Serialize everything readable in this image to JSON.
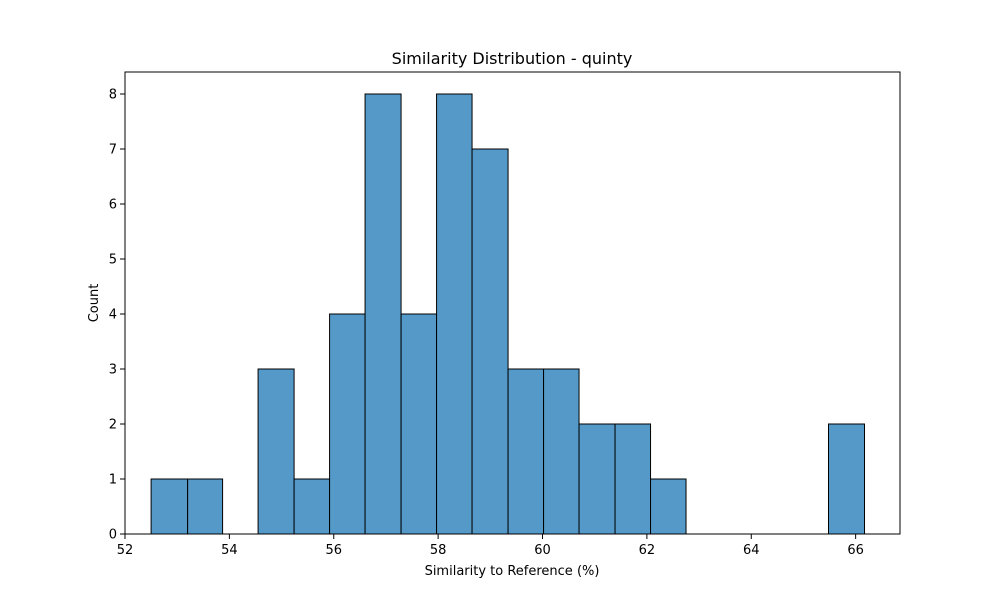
{
  "chart_data": {
    "type": "bar",
    "title": "Similarity Distribution - quinty",
    "xlabel": "Similarity to Reference (%)",
    "ylabel": "Count",
    "xlim": [
      52.0,
      66.85
    ],
    "ylim": [
      0,
      8.4
    ],
    "xticks": [
      52,
      54,
      56,
      58,
      60,
      62,
      64,
      66
    ],
    "yticks": [
      0,
      1,
      2,
      3,
      4,
      5,
      6,
      7,
      8
    ],
    "bins": [
      {
        "start": 52.5,
        "end": 53.2,
        "count": 1
      },
      {
        "start": 53.2,
        "end": 53.87,
        "count": 1
      },
      {
        "start": 53.87,
        "end": 54.55,
        "count": 0
      },
      {
        "start": 54.55,
        "end": 55.24,
        "count": 3
      },
      {
        "start": 55.24,
        "end": 55.92,
        "count": 1
      },
      {
        "start": 55.92,
        "end": 56.6,
        "count": 4
      },
      {
        "start": 56.6,
        "end": 57.29,
        "count": 8
      },
      {
        "start": 57.29,
        "end": 57.97,
        "count": 4
      },
      {
        "start": 57.97,
        "end": 58.65,
        "count": 8
      },
      {
        "start": 58.65,
        "end": 59.34,
        "count": 7
      },
      {
        "start": 59.34,
        "end": 60.02,
        "count": 3
      },
      {
        "start": 60.02,
        "end": 60.7,
        "count": 3
      },
      {
        "start": 60.7,
        "end": 61.39,
        "count": 2
      },
      {
        "start": 61.39,
        "end": 62.07,
        "count": 2
      },
      {
        "start": 62.07,
        "end": 62.75,
        "count": 1
      },
      {
        "start": 62.75,
        "end": 63.43,
        "count": 0
      },
      {
        "start": 63.43,
        "end": 64.12,
        "count": 0
      },
      {
        "start": 64.12,
        "end": 64.8,
        "count": 0
      },
      {
        "start": 64.8,
        "end": 65.48,
        "count": 0
      },
      {
        "start": 65.48,
        "end": 66.17,
        "count": 2
      }
    ],
    "grid": false,
    "colors": {
      "bar_fill": "#5499c7",
      "bar_edge": "#000000"
    }
  }
}
